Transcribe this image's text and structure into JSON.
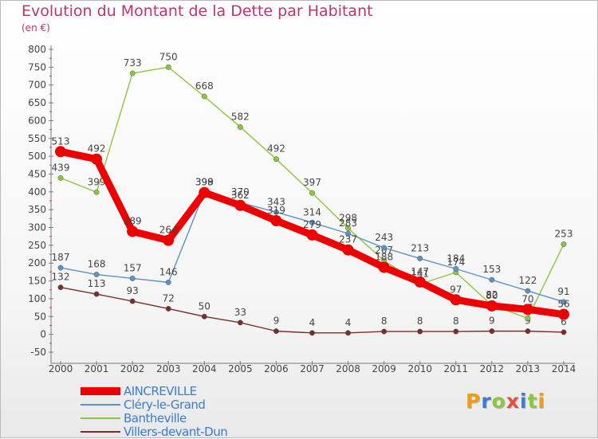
{
  "title": "Evolution du Montant de la Dette par Habitant",
  "subtitle": "(en €)",
  "brand": {
    "text": "Proxiti",
    "colors": [
      "#f39c12",
      "#3a7cd1",
      "#8cc63f",
      "#e74c3c",
      "#3a7cd1",
      "#8cc63f",
      "#f39c12"
    ]
  },
  "chart_data": {
    "type": "line",
    "x": [
      "2000",
      "2001",
      "2002",
      "2003",
      "2004",
      "2005",
      "2006",
      "2007",
      "2008",
      "2009",
      "2010",
      "2011",
      "2012",
      "2013",
      "2014"
    ],
    "ylim": [
      -50,
      800
    ],
    "yticks": [
      "-50",
      "0",
      "50",
      "100",
      "150",
      "200",
      "250",
      "300",
      "350",
      "400",
      "450",
      "500",
      "550",
      "600",
      "650",
      "700",
      "750",
      "800"
    ],
    "grid": false,
    "legend_position": "bottom-left",
    "series": [
      {
        "name": "Villers-devant-Dun",
        "color": "#7b2d2d",
        "values": [
          132,
          113,
          93,
          72,
          50,
          33,
          9,
          4,
          4,
          8,
          8,
          8,
          9,
          9,
          6
        ]
      },
      {
        "name": "Bantheville",
        "color": "#8cc63f",
        "values": [
          439,
          399,
          733,
          750,
          668,
          582,
          492,
          397,
          298,
          207,
          141,
          174,
          82,
          45,
          253
        ]
      },
      {
        "name": "Cléry-le-Grand",
        "color": "#5b93c8",
        "values": [
          187,
          168,
          157,
          146,
          399,
          370,
          343,
          314,
          283,
          243,
          213,
          184,
          153,
          122,
          91
        ]
      },
      {
        "name": "AINCREVILLE",
        "color": "#ee0000",
        "values": [
          513,
          492,
          289,
          264,
          398,
          362,
          319,
          279,
          237,
          188,
          147,
          97,
          80,
          70,
          56
        ]
      }
    ],
    "legend_order": [
      "AINCREVILLE",
      "Cléry-le-Grand",
      "Bantheville",
      "Villers-devant-Dun"
    ]
  }
}
